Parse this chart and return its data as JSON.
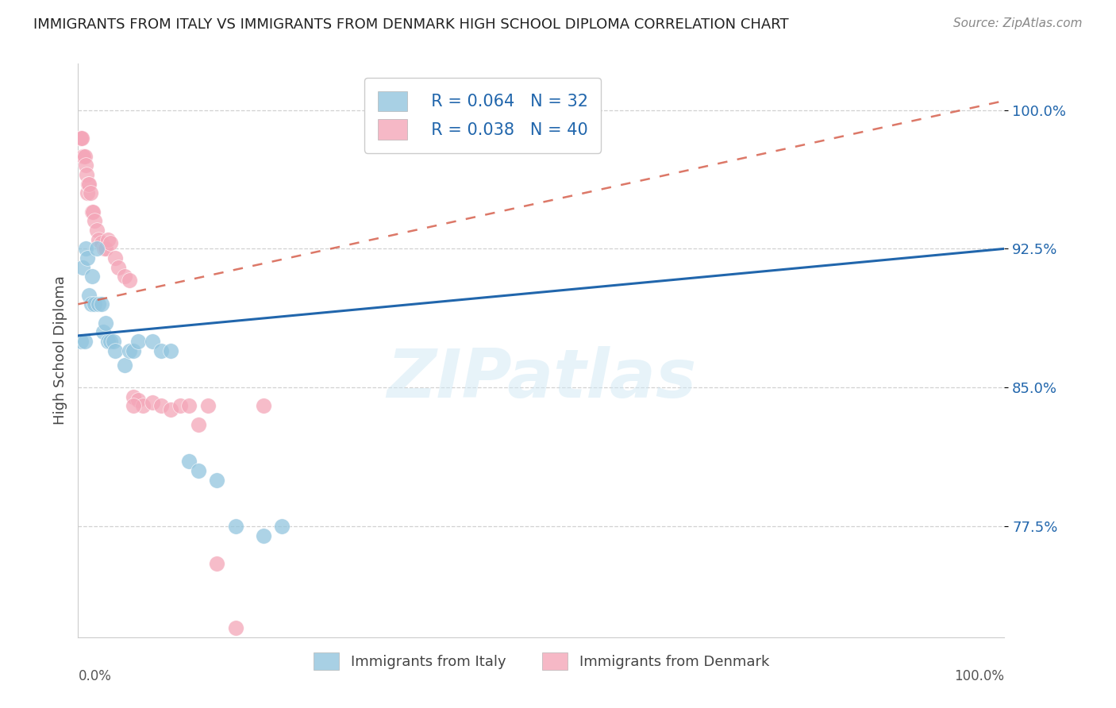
{
  "title": "IMMIGRANTS FROM ITALY VS IMMIGRANTS FROM DENMARK HIGH SCHOOL DIPLOMA CORRELATION CHART",
  "source": "Source: ZipAtlas.com",
  "ylabel": "High School Diploma",
  "ytick_labels": [
    "77.5%",
    "85.0%",
    "92.5%",
    "100.0%"
  ],
  "yticks": [
    0.775,
    0.85,
    0.925,
    1.0
  ],
  "xlim": [
    0,
    1.0
  ],
  "ylim": [
    0.715,
    1.025
  ],
  "legend_R_italy": "R = 0.064",
  "legend_N_italy": "32",
  "legend_R_denmark": "R = 0.038",
  "legend_N_denmark": "40",
  "italy_color": "#92c5de",
  "denmark_color": "#f4a6b8",
  "italy_line_color": "#2166ac",
  "denmark_line_color": "#d6604d",
  "watermark": "ZIPatlas",
  "italy_x": [
    0.003,
    0.005,
    0.007,
    0.008,
    0.01,
    0.012,
    0.014,
    0.015,
    0.018,
    0.02,
    0.022,
    0.025,
    0.027,
    0.03,
    0.032,
    0.035,
    0.038,
    0.04,
    0.05,
    0.055,
    0.06,
    0.065,
    0.08,
    0.09,
    0.1,
    0.12,
    0.13,
    0.15,
    0.17,
    0.2,
    0.22,
    0.5
  ],
  "italy_y": [
    0.875,
    0.915,
    0.875,
    0.925,
    0.92,
    0.9,
    0.895,
    0.91,
    0.895,
    0.925,
    0.895,
    0.895,
    0.88,
    0.885,
    0.875,
    0.875,
    0.875,
    0.87,
    0.862,
    0.87,
    0.87,
    0.875,
    0.875,
    0.87,
    0.87,
    0.81,
    0.805,
    0.8,
    0.775,
    0.77,
    0.775,
    1.0
  ],
  "denmark_x": [
    0.002,
    0.003,
    0.004,
    0.005,
    0.006,
    0.007,
    0.008,
    0.009,
    0.01,
    0.011,
    0.012,
    0.013,
    0.015,
    0.016,
    0.018,
    0.02,
    0.022,
    0.025,
    0.028,
    0.03,
    0.032,
    0.035,
    0.04,
    0.043,
    0.05,
    0.055,
    0.06,
    0.065,
    0.07,
    0.08,
    0.09,
    0.1,
    0.11,
    0.12,
    0.13,
    0.14,
    0.15,
    0.17,
    0.2,
    0.06
  ],
  "denmark_y": [
    0.985,
    0.985,
    0.985,
    0.975,
    0.975,
    0.975,
    0.97,
    0.965,
    0.955,
    0.96,
    0.96,
    0.955,
    0.945,
    0.945,
    0.94,
    0.935,
    0.93,
    0.928,
    0.925,
    0.925,
    0.93,
    0.928,
    0.92,
    0.915,
    0.91,
    0.908,
    0.845,
    0.843,
    0.84,
    0.842,
    0.84,
    0.838,
    0.84,
    0.84,
    0.83,
    0.84,
    0.755,
    0.72,
    0.84,
    0.84
  ],
  "italy_trend_x": [
    0.0,
    1.0
  ],
  "italy_trend_y_start": 0.878,
  "italy_trend_y_end": 0.925,
  "denmark_trend_y_start": 0.895,
  "denmark_trend_y_end": 1.005
}
